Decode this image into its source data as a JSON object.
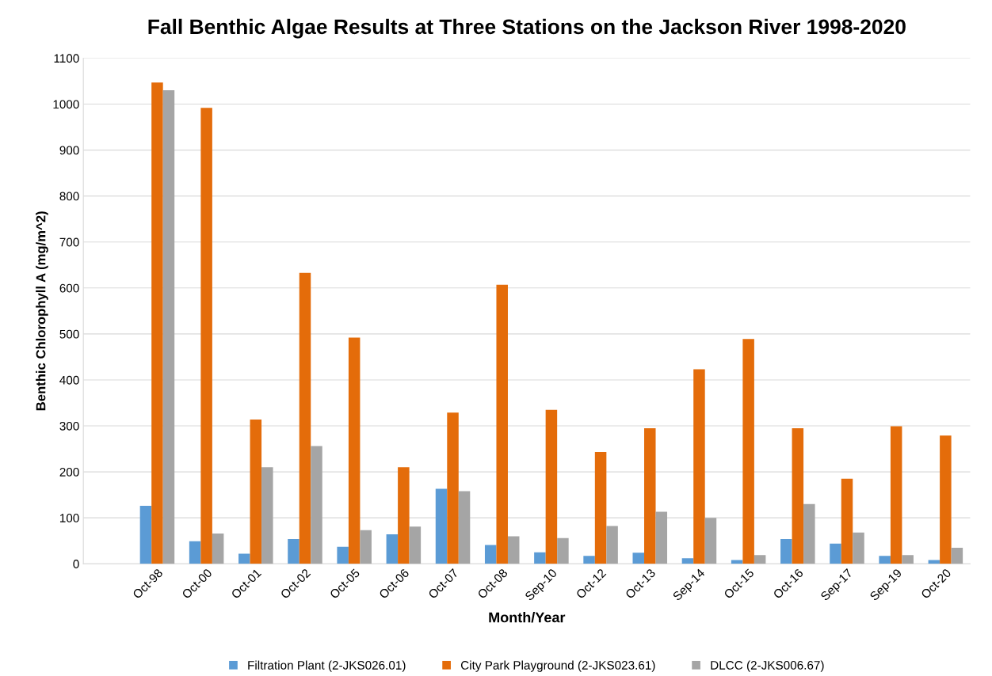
{
  "chart_data": {
    "type": "bar",
    "title": "Fall Benthic Algae Results at Three Stations on the Jackson River 1998-2020",
    "xlabel": "Month/Year",
    "ylabel": "Benthic Chlorophyll A (mg/m^2)",
    "categories": [
      null,
      "Oct-98",
      "Oct-00",
      "Oct-01",
      "Oct-02",
      "Oct-05",
      "Oct-06",
      "Oct-07",
      "Oct-08",
      "Sep-10",
      "Oct-12",
      "Oct-13",
      "Sep-14",
      "Oct-15",
      "Oct-16",
      "Sep-17",
      "Sep-19",
      "Oct-20"
    ],
    "series": [
      {
        "name": "Filtration Plant (2-JKS026.01)",
        "color": "#5b9bd5",
        "values": [
          null,
          126,
          49,
          22,
          54,
          37,
          64,
          163,
          41,
          25,
          17,
          24,
          12,
          8,
          54,
          44,
          17,
          8
        ]
      },
      {
        "name": "City Park Playground (2-JKS023.61)",
        "color": "#e46c0a",
        "values": [
          null,
          1047,
          992,
          314,
          633,
          492,
          210,
          329,
          607,
          335,
          243,
          295,
          423,
          489,
          295,
          185,
          299,
          279
        ]
      },
      {
        "name": "DLCC (2-JKS006.67)",
        "color": "#a5a5a5",
        "values": [
          null,
          1030,
          66,
          210,
          256,
          73,
          81,
          158,
          60,
          56,
          82,
          113,
          100,
          19,
          130,
          68,
          19,
          35
        ]
      }
    ],
    "ylim": [
      0,
      1100
    ],
    "yticks": [
      0,
      100,
      200,
      300,
      400,
      500,
      600,
      700,
      800,
      900,
      1000,
      1100
    ],
    "grid": "y",
    "legend": "bottom"
  }
}
